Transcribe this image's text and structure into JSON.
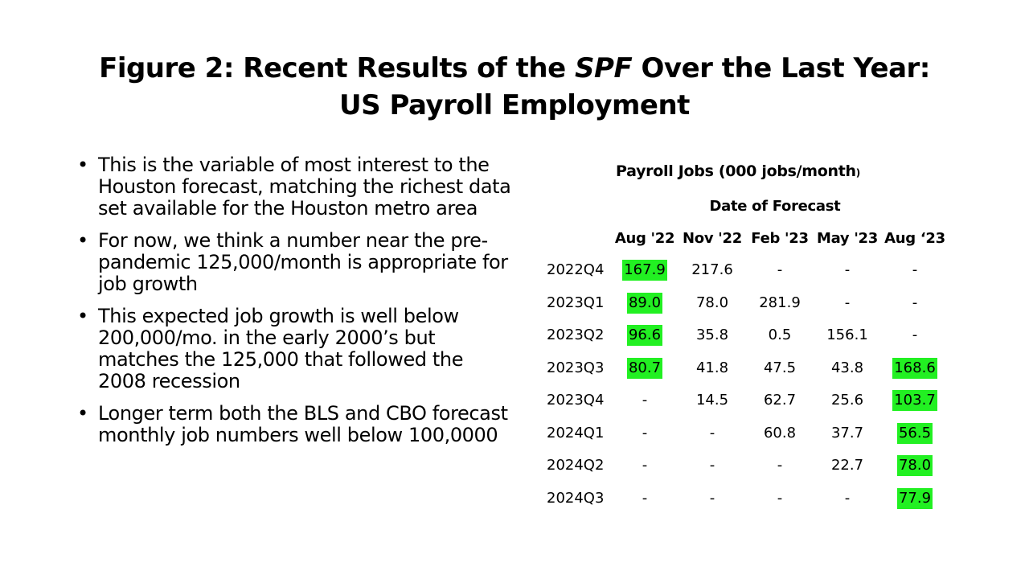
{
  "title": {
    "line1_prefix": "Figure 2: Recent Results of the ",
    "line1_italic": "SPF",
    "line1_suffix": " Over the Last Year:",
    "line2": "US Payroll Employment"
  },
  "bullets": [
    "This is the variable of most interest to the Houston forecast, matching the richest data set available for the Houston metro area",
    "For now, we think a number near the pre-pandemic 125,000/month is appropriate for job growth",
    "This expected job growth is well below 200,000/mo. in the early 2000’s but matches the 125,000 that followed the 2008 recession",
    "Longer term both the BLS and CBO forecast monthly job numbers well below 100,0000"
  ],
  "table": {
    "caption_main": "Payroll Jobs (000 jobs/month",
    "caption_paren": ")",
    "subcaption": "Date of Forecast",
    "columns": [
      "Aug '22",
      "Nov '22",
      "Feb '23",
      "May '23",
      "Aug ‘23"
    ],
    "highlight_color": "#22f022",
    "rows": [
      {
        "label": "2022Q4",
        "cells": [
          {
            "v": "167.9",
            "hl": true
          },
          {
            "v": "217.6",
            "hl": false
          },
          {
            "v": "-",
            "hl": false
          },
          {
            "v": "-",
            "hl": false
          },
          {
            "v": "-",
            "hl": false
          }
        ]
      },
      {
        "label": "2023Q1",
        "cells": [
          {
            "v": "89.0",
            "hl": true
          },
          {
            "v": "78.0",
            "hl": false
          },
          {
            "v": "281.9",
            "hl": false
          },
          {
            "v": "-",
            "hl": false
          },
          {
            "v": "-",
            "hl": false
          }
        ]
      },
      {
        "label": "2023Q2",
        "cells": [
          {
            "v": "96.6",
            "hl": true
          },
          {
            "v": "35.8",
            "hl": false
          },
          {
            "v": "0.5",
            "hl": false
          },
          {
            "v": "156.1",
            "hl": false
          },
          {
            "v": "-",
            "hl": false
          }
        ]
      },
      {
        "label": "2023Q3",
        "cells": [
          {
            "v": "80.7",
            "hl": true
          },
          {
            "v": "41.8",
            "hl": false
          },
          {
            "v": "47.5",
            "hl": false
          },
          {
            "v": "43.8",
            "hl": false
          },
          {
            "v": "168.6",
            "hl": true
          }
        ]
      },
      {
        "label": "2023Q4",
        "cells": [
          {
            "v": "-",
            "hl": false
          },
          {
            "v": "14.5",
            "hl": false
          },
          {
            "v": "62.7",
            "hl": false
          },
          {
            "v": "25.6",
            "hl": false
          },
          {
            "v": "103.7",
            "hl": true
          }
        ]
      },
      {
        "label": "2024Q1",
        "cells": [
          {
            "v": "-",
            "hl": false
          },
          {
            "v": "-",
            "hl": false
          },
          {
            "v": "60.8",
            "hl": false
          },
          {
            "v": "37.7",
            "hl": false
          },
          {
            "v": "56.5",
            "hl": true
          }
        ]
      },
      {
        "label": "2024Q2",
        "cells": [
          {
            "v": "-",
            "hl": false
          },
          {
            "v": "-",
            "hl": false
          },
          {
            "v": "-",
            "hl": false
          },
          {
            "v": "22.7",
            "hl": false
          },
          {
            "v": "78.0",
            "hl": true
          }
        ]
      },
      {
        "label": "2024Q3",
        "cells": [
          {
            "v": "-",
            "hl": false
          },
          {
            "v": "-",
            "hl": false
          },
          {
            "v": "-",
            "hl": false
          },
          {
            "v": "-",
            "hl": false
          },
          {
            "v": "77.9",
            "hl": true
          }
        ]
      }
    ]
  }
}
